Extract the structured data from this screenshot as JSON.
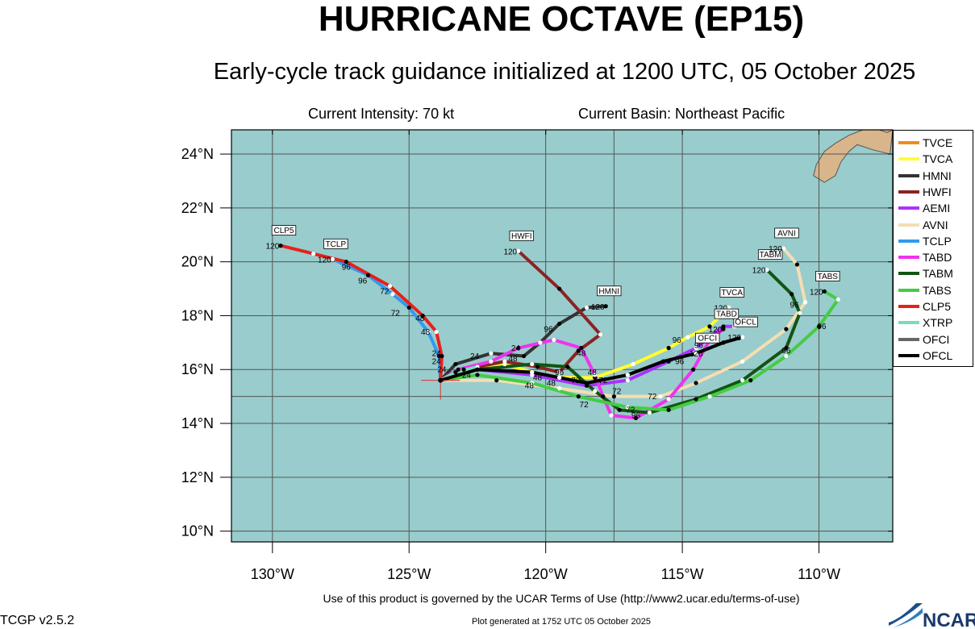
{
  "title": "HURRICANE OCTAVE (EP15)",
  "subtitle": "Early-cycle track guidance initialized at 1200 UTC, 05 October 2025",
  "current_intensity": "Current Intensity: 70 kt",
  "current_basin": "Current Basin: Northeast Pacific",
  "footer_terms": "Use of this product is governed by the UCAR Terms of Use (http://www2.ucar.edu/terms-of-use)",
  "version": "TCGP v2.5.2",
  "plot_generated": "Plot generated at 1752 UTC   05 October 2025",
  "logo_text": "NCAR",
  "colors": {
    "ocean": "#99cccc",
    "land": "#d8b58a",
    "grid": "#555555"
  },
  "map": {
    "lon_range": [
      -131.5,
      -107.3
    ],
    "lat_range": [
      9.6,
      24.9
    ],
    "lat_ticks": [
      {
        "value": 10,
        "label": "10°N"
      },
      {
        "value": 12,
        "label": "12°N"
      },
      {
        "value": 14,
        "label": "14°N"
      },
      {
        "value": 16,
        "label": "16°N"
      },
      {
        "value": 18,
        "label": "18°N"
      },
      {
        "value": 20,
        "label": "20°N"
      },
      {
        "value": 22,
        "label": "22°N"
      },
      {
        "value": 24,
        "label": "24°N"
      }
    ],
    "lon_ticks": [
      {
        "value": -130,
        "label": "130°W"
      },
      {
        "value": -125,
        "label": "125°W"
      },
      {
        "value": -120,
        "label": "120°W"
      },
      {
        "value": -115,
        "label": "115°W"
      },
      {
        "value": -110,
        "label": "110°W"
      }
    ],
    "storm_position": {
      "lon": -123.85,
      "lat": 15.6
    },
    "land": [
      [
        [
          -108.4,
          24.9
        ],
        [
          -108.9,
          24.7
        ],
        [
          -109.4,
          24.4
        ],
        [
          -109.8,
          24.1
        ],
        [
          -110.1,
          23.6
        ],
        [
          -110.2,
          23.2
        ],
        [
          -109.8,
          22.95
        ],
        [
          -109.4,
          23.2
        ],
        [
          -109.2,
          23.7
        ],
        [
          -108.9,
          24.1
        ],
        [
          -108.6,
          24.35
        ],
        [
          -108.0,
          24.15
        ],
        [
          -107.4,
          24.0
        ],
        [
          -107.3,
          24.9
        ]
      ],
      [
        [
          -107.8,
          24.9
        ],
        [
          -107.5,
          24.8
        ],
        [
          -107.3,
          24.9
        ]
      ]
    ]
  },
  "chart_data": {
    "type": "track-map",
    "models": [
      {
        "name": "TVCE",
        "color": "#f08c1e",
        "points": [
          [
            -123.85,
            15.6
          ],
          [
            -122.5,
            16.1
          ],
          [
            -121.5,
            16.2
          ],
          [
            -120.5,
            15.9
          ],
          [
            -119.5,
            15.7
          ],
          [
            -118.2,
            15.7
          ],
          [
            -116.8,
            16.2
          ],
          [
            -115.5,
            16.8
          ],
          [
            -114.8,
            17.2
          ],
          [
            -114,
            17.6
          ],
          [
            -113.3,
            18.3
          ]
        ]
      },
      {
        "name": "TVCA",
        "color": "#ffff33",
        "points": [
          [
            -123.85,
            15.6
          ],
          [
            -122.5,
            16.1
          ],
          [
            -121.5,
            16.2
          ],
          [
            -120.5,
            15.9
          ],
          [
            -119.5,
            15.7
          ],
          [
            -118.2,
            15.7
          ],
          [
            -116.8,
            16.2
          ],
          [
            -115.5,
            16.8
          ],
          [
            -114.8,
            17.2
          ],
          [
            -114,
            17.6
          ],
          [
            -113.3,
            18.3
          ]
        ]
      },
      {
        "name": "HMNI",
        "color": "#333333",
        "points": [
          [
            -123.85,
            15.6
          ],
          [
            -123.3,
            16.2
          ],
          [
            -122,
            16.6
          ],
          [
            -120.8,
            16.5
          ],
          [
            -120.2,
            17
          ],
          [
            -119.5,
            17.7
          ],
          [
            -118.5,
            18.3
          ],
          [
            -117.8,
            18.35
          ]
        ]
      },
      {
        "name": "HWFI",
        "color": "#8b2323",
        "points": [
          [
            -123.85,
            15.6
          ],
          [
            -123,
            16
          ],
          [
            -121.5,
            16.3
          ],
          [
            -120.3,
            16.1
          ],
          [
            -119.5,
            15.9
          ],
          [
            -118.8,
            16.7
          ],
          [
            -118,
            17.3
          ],
          [
            -119.5,
            19
          ],
          [
            -121,
            20.4
          ]
        ]
      },
      {
        "name": "AEMI",
        "color": "#aa33ff",
        "points": [
          [
            -123.85,
            15.6
          ],
          [
            -122.5,
            16
          ],
          [
            -120.5,
            15.8
          ],
          [
            -118.5,
            15.4
          ],
          [
            -117,
            15.6
          ],
          [
            -115.5,
            16.3
          ],
          [
            -114.5,
            16.8
          ],
          [
            -113.5,
            17.6
          ],
          [
            -113.1,
            17.6
          ]
        ]
      },
      {
        "name": "AVNI",
        "color": "#f5deb3",
        "points": [
          [
            -123.85,
            15.6
          ],
          [
            -121.8,
            15.6
          ],
          [
            -119.5,
            15.3
          ],
          [
            -117.5,
            15
          ],
          [
            -115.8,
            15
          ],
          [
            -114.5,
            15.5
          ],
          [
            -112.8,
            16.3
          ],
          [
            -111.2,
            17.5
          ],
          [
            -110.5,
            18.5
          ],
          [
            -110.8,
            19.9
          ],
          [
            -111.3,
            20.5
          ]
        ]
      },
      {
        "name": "TCLP",
        "color": "#3399ee",
        "points": [
          [
            -123.85,
            15.6
          ],
          [
            -123.9,
            16.5
          ],
          [
            -124.3,
            17.4
          ],
          [
            -125,
            18.3
          ],
          [
            -125.6,
            18.8
          ],
          [
            -126.5,
            19.5
          ],
          [
            -127.8,
            20.1
          ]
        ]
      },
      {
        "name": "TABD",
        "color": "#ee33ee",
        "points": [
          [
            -123.85,
            15.6
          ],
          [
            -123.2,
            16
          ],
          [
            -122,
            16.3
          ],
          [
            -121,
            16.8
          ],
          [
            -119.7,
            17.1
          ],
          [
            -118.7,
            16.8
          ],
          [
            -118.2,
            15.8
          ],
          [
            -117.9,
            15
          ],
          [
            -117.6,
            14.3
          ],
          [
            -116.7,
            14.2
          ],
          [
            -115.5,
            14.9
          ],
          [
            -114.6,
            16
          ],
          [
            -114,
            17.1
          ],
          [
            -113.5,
            17.5
          ]
        ]
      },
      {
        "name": "TABM",
        "color": "#115511",
        "points": [
          [
            -123.85,
            15.6
          ],
          [
            -122.5,
            16
          ],
          [
            -120.5,
            16.2
          ],
          [
            -119.2,
            16.1
          ],
          [
            -118.2,
            15.2
          ],
          [
            -117.3,
            14.5
          ],
          [
            -116.2,
            14.4
          ],
          [
            -114.5,
            14.9
          ],
          [
            -112.8,
            15.6
          ],
          [
            -111.2,
            16.8
          ],
          [
            -110.7,
            18.1
          ],
          [
            -111,
            18.8
          ],
          [
            -111.9,
            19.7
          ]
        ]
      },
      {
        "name": "TABS",
        "color": "#44cc44",
        "points": [
          [
            -123.85,
            15.6
          ],
          [
            -122.5,
            15.8
          ],
          [
            -120.5,
            15.5
          ],
          [
            -118.8,
            15
          ],
          [
            -117,
            14.6
          ],
          [
            -115.5,
            14.5
          ],
          [
            -114,
            15
          ],
          [
            -112.5,
            15.6
          ],
          [
            -111.2,
            16.5
          ],
          [
            -110,
            17.6
          ],
          [
            -109.3,
            18.6
          ],
          [
            -109.8,
            18.9
          ]
        ]
      },
      {
        "name": "CLP5",
        "color": "#e8201a",
        "points": [
          [
            -123.85,
            15.6
          ],
          [
            -123.8,
            16.5
          ],
          [
            -124,
            17.4
          ],
          [
            -124.5,
            18
          ],
          [
            -125.7,
            19.1
          ],
          [
            -127.3,
            20
          ],
          [
            -128.5,
            20.3
          ],
          [
            -129.7,
            20.6
          ]
        ]
      },
      {
        "name": "XTRP",
        "color": "#77ddbb",
        "points": [
          [
            -123.85,
            15.6
          ],
          [
            -123.3,
            15.9
          ],
          [
            -122.5,
            16.1
          ]
        ]
      },
      {
        "name": "OFCI",
        "color": "#666666",
        "points": [
          [
            -123.85,
            15.6
          ],
          [
            -122.5,
            16
          ],
          [
            -120.5,
            15.9
          ],
          [
            -118.5,
            15.5
          ],
          [
            -117,
            15.8
          ],
          [
            -115.7,
            16.3
          ],
          [
            -114.5,
            16.6
          ],
          [
            -113.5,
            17
          ],
          [
            -112.8,
            17.2
          ]
        ]
      },
      {
        "name": "OFCL",
        "color": "#000000",
        "points": [
          [
            -123.85,
            15.6
          ],
          [
            -122.5,
            16
          ],
          [
            -120.5,
            15.9
          ],
          [
            -118.5,
            15.5
          ],
          [
            -117,
            15.8
          ],
          [
            -115.7,
            16.3
          ],
          [
            -114.5,
            16.6
          ],
          [
            -113.5,
            17
          ],
          [
            -112.8,
            17.2
          ]
        ]
      }
    ],
    "end_labels": [
      {
        "text": "CLP5",
        "lon": -129.7,
        "lat": 20.6,
        "hour": "120"
      },
      {
        "text": "TCLP",
        "lon": -127.8,
        "lat": 20.1,
        "hour": "120"
      },
      {
        "text": "HWFI",
        "lon": -121,
        "lat": 20.4,
        "hour": "120"
      },
      {
        "text": "HMNI",
        "lon": -117.8,
        "lat": 18.35,
        "hour": "120"
      },
      {
        "text": "TVCA",
        "lon": -113.3,
        "lat": 18.3,
        "hour": "120"
      },
      {
        "text": "OFCL",
        "lon": -112.8,
        "lat": 17.2,
        "hour": "120"
      },
      {
        "text": "TABD",
        "lon": -113.5,
        "lat": 17.5,
        "hour": "120"
      },
      {
        "text": "OFCI",
        "lon": -114.2,
        "lat": 16.6,
        "hour": "120"
      },
      {
        "text": "TABM",
        "lon": -111.9,
        "lat": 19.7,
        "hour": "120"
      },
      {
        "text": "AVNI",
        "lon": -111.3,
        "lat": 20.5,
        "hour": "120"
      },
      {
        "text": "TABS",
        "lon": -109.8,
        "lat": 18.9,
        "hour": "120"
      }
    ],
    "hour_labels": [
      {
        "text": "96",
        "lon": -127.3,
        "lat": 19.7
      },
      {
        "text": "96",
        "lon": -126.7,
        "lat": 19.2
      },
      {
        "text": "72",
        "lon": -125.9,
        "lat": 18.8
      },
      {
        "text": "72",
        "lon": -125.5,
        "lat": 18.0
      },
      {
        "text": "48",
        "lon": -124.6,
        "lat": 17.8
      },
      {
        "text": "48",
        "lon": -124.4,
        "lat": 17.3
      },
      {
        "text": "24",
        "lon": -124.0,
        "lat": 16.5
      },
      {
        "text": "24",
        "lon": -124.0,
        "lat": 16.2
      },
      {
        "text": "24",
        "lon": -123.8,
        "lat": 15.9
      },
      {
        "text": "24",
        "lon": -122.9,
        "lat": 15.7
      },
      {
        "text": "24",
        "lon": -122.6,
        "lat": 16.4
      },
      {
        "text": "24",
        "lon": -121.1,
        "lat": 16.7
      },
      {
        "text": "48",
        "lon": -121.2,
        "lat": 16.3
      },
      {
        "text": "48",
        "lon": -120.3,
        "lat": 15.6
      },
      {
        "text": "48",
        "lon": -120.6,
        "lat": 15.3
      },
      {
        "text": "48",
        "lon": -119.8,
        "lat": 15.4
      },
      {
        "text": "48",
        "lon": -118.7,
        "lat": 16.5
      },
      {
        "text": "48",
        "lon": -118.3,
        "lat": 15.8
      },
      {
        "text": "96",
        "lon": -119.9,
        "lat": 17.4
      },
      {
        "text": "96",
        "lon": -119.5,
        "lat": 15.8
      },
      {
        "text": "72",
        "lon": -118.9,
        "lat": 15.5
      },
      {
        "text": "72",
        "lon": -117.9,
        "lat": 15.5
      },
      {
        "text": "72",
        "lon": -117.4,
        "lat": 15.1
      },
      {
        "text": "72",
        "lon": -116.1,
        "lat": 14.9
      },
      {
        "text": "72",
        "lon": -118.6,
        "lat": 14.6
      },
      {
        "text": "72",
        "lon": -116.9,
        "lat": 14.4
      },
      {
        "text": "96",
        "lon": -116.7,
        "lat": 14.2
      },
      {
        "text": "96",
        "lon": -115.2,
        "lat": 17.0
      },
      {
        "text": "96",
        "lon": -115.1,
        "lat": 16.2
      },
      {
        "text": "96",
        "lon": -114.4,
        "lat": 16.8
      },
      {
        "text": "96",
        "lon": -111.2,
        "lat": 16.6
      },
      {
        "text": "96",
        "lon": -110.9,
        "lat": 18.3
      },
      {
        "text": "96",
        "lon": -109.9,
        "lat": 17.5
      }
    ]
  }
}
